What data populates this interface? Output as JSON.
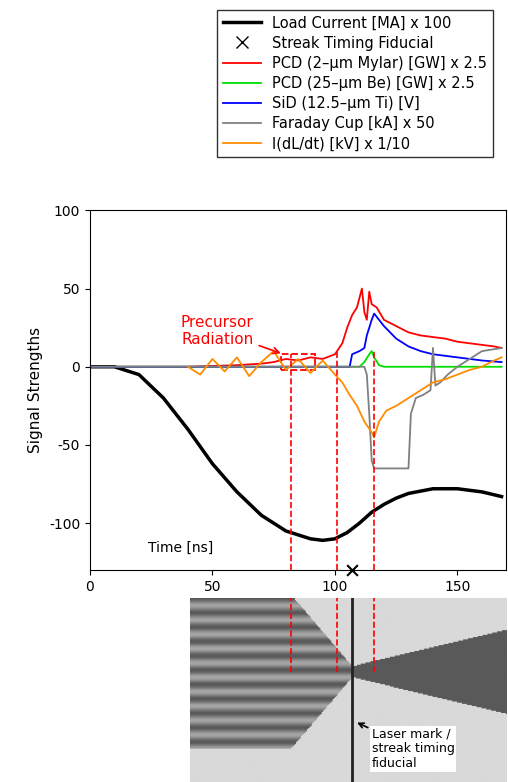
{
  "chart_data": {
    "type": "line",
    "y_label": "Signal Strengths",
    "x_label": "Time [ns]",
    "xlim": [
      0,
      170
    ],
    "xticks": [
      0,
      50,
      100,
      150
    ],
    "ylim": [
      -130,
      100
    ],
    "yticks": [
      -100,
      -50,
      0,
      50,
      100
    ],
    "legend": "upper right",
    "series": [
      {
        "name": "Load Current [MA] x 100",
        "color": "#000000",
        "x": [
          0,
          10,
          20,
          30,
          40,
          50,
          60,
          70,
          80,
          90,
          95,
          100,
          105,
          110,
          115,
          120,
          125,
          130,
          140,
          150,
          160,
          168
        ],
        "values": [
          0,
          0,
          -5,
          -20,
          -40,
          -62,
          -80,
          -95,
          -105,
          -110,
          -111,
          -110,
          -106,
          -100,
          -93,
          -88,
          -84,
          -81,
          -78,
          -78,
          -80,
          -83
        ]
      },
      {
        "name": "Streak Timing Fiducial",
        "color": "#000000",
        "type": "scatter",
        "marker": "x",
        "x": [
          107
        ],
        "values": [
          -130
        ]
      },
      {
        "name": "PCD (2–μm Mylar) [GW] x 2.5",
        "color": "#ff0000",
        "x": [
          0,
          20,
          40,
          60,
          70,
          75,
          80,
          85,
          90,
          95,
          100,
          103,
          105,
          107,
          109,
          110,
          111,
          112,
          113,
          114,
          115,
          117,
          120,
          125,
          130,
          135,
          140,
          145,
          150,
          155,
          160,
          165,
          168
        ],
        "values": [
          0,
          0,
          0,
          1,
          2,
          3,
          5,
          4,
          6,
          5,
          8,
          15,
          25,
          33,
          38,
          44,
          50,
          35,
          30,
          48,
          40,
          38,
          30,
          26,
          22,
          20,
          19,
          18,
          16,
          15,
          14,
          13,
          12
        ]
      },
      {
        "name": "PCD (25–μm Be) [GW] x 2.5",
        "color": "#00dd00",
        "x": [
          0,
          50,
          100,
          110,
          112,
          114,
          115,
          116,
          118,
          120,
          168
        ],
        "values": [
          0,
          0,
          0,
          0,
          3,
          8,
          10,
          6,
          1,
          0,
          0
        ]
      },
      {
        "name": "SiD (12.5–μm Ti) [V]",
        "color": "#0000ff",
        "x": [
          0,
          100,
          106,
          107,
          110,
          112,
          113,
          115,
          116,
          118,
          120,
          125,
          130,
          135,
          140,
          150,
          160,
          168
        ],
        "values": [
          0,
          0,
          0,
          8,
          10,
          12,
          20,
          30,
          34,
          30,
          26,
          18,
          13,
          10,
          8,
          6,
          4,
          3
        ]
      },
      {
        "name": "Faraday Cup [kA] x 50",
        "color": "#808080",
        "x": [
          0,
          112,
          113,
          114,
          115,
          116,
          130,
          131,
          133,
          136,
          139,
          140,
          141,
          143,
          146,
          150,
          155,
          160,
          168
        ],
        "values": [
          0,
          0,
          -5,
          -30,
          -60,
          -65,
          -65,
          -30,
          -20,
          -18,
          -15,
          12,
          -12,
          -10,
          -5,
          0,
          5,
          10,
          12
        ]
      },
      {
        "name": "I(dL/dt) [kV] x 1/10",
        "color": "#ff8c00",
        "x": [
          40,
          45,
          50,
          55,
          60,
          65,
          70,
          75,
          80,
          85,
          90,
          95,
          100,
          103,
          106,
          109,
          112,
          115,
          116,
          118,
          121,
          125,
          130,
          135,
          140,
          145,
          150,
          155,
          160,
          165,
          168
        ],
        "values": [
          0,
          -5,
          5,
          -3,
          6,
          -6,
          3,
          10,
          -2,
          5,
          -4,
          4,
          -5,
          -10,
          -18,
          -25,
          -35,
          -42,
          -45,
          -35,
          -28,
          -25,
          -20,
          -15,
          -10,
          -8,
          -5,
          -2,
          0,
          4,
          6
        ]
      }
    ],
    "annotation": {
      "text": "Precursor\nRadiation",
      "color": "#ff0000",
      "x": 52,
      "y": 23,
      "box": {
        "x": [
          78,
          92
        ],
        "y": [
          -2,
          8
        ]
      }
    },
    "timing_lines": [
      {
        "x": 82,
        "top": 8
      },
      {
        "x": 101,
        "top": 10
      },
      {
        "x": 116,
        "top": 10
      }
    ],
    "streak_note": "Laser mark /\nstreak timing\nfiducial"
  }
}
